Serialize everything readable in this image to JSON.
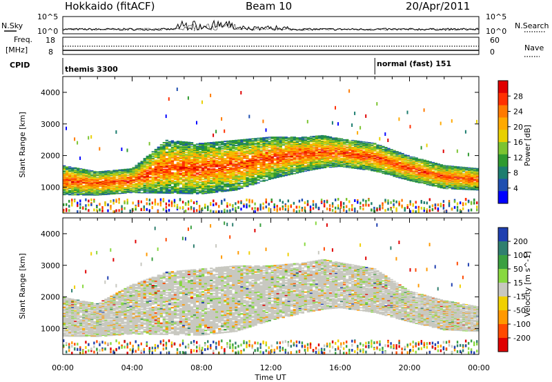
{
  "header": {
    "station": "Hokkaido (fitACF)",
    "beam": "Beam 10",
    "date": "20/Apr/2011"
  },
  "top_panels": {
    "nsky_label": "N.Sky",
    "nsky_ticks": [
      "10^5",
      "10^0"
    ],
    "nsearch_label": "N.Search",
    "nsearch_ticks": [
      "10^5",
      "10^0"
    ],
    "freq_label_1": "Freq.",
    "freq_label_2": "[MHz]",
    "freq_ticks": [
      "18",
      "8"
    ],
    "nave_label": "Nave",
    "nave_ticks": [
      "60",
      "0"
    ],
    "cpid_label": "CPID",
    "cpid_segments": [
      {
        "text": "themis 3300",
        "start_hour": 0
      },
      {
        "text": "normal (fast) 151",
        "start_hour": 18
      }
    ]
  },
  "chart_data": [
    {
      "type": "heatmap",
      "title": "",
      "xlabel": "Time UT",
      "ylabel": "Slant Range [km]",
      "quantity": "Power [dB]",
      "x_range_hours": [
        0,
        24
      ],
      "ylim": [
        180,
        4500
      ],
      "y_ticks": [
        1000,
        2000,
        3000,
        4000
      ],
      "colorbar_ticks": [
        "28",
        "24",
        "20",
        "16",
        "12",
        "8",
        "4"
      ],
      "colorbar_colors": [
        "#e00000",
        "#ff3000",
        "#ff7a00",
        "#ffaa00",
        "#e8d000",
        "#7cc430",
        "#2f9a2f",
        "#1c7d6f",
        "#1f4fb0",
        "#0000ff"
      ],
      "echo_bands": [
        {
          "hours": [
            0,
            2,
            4,
            6,
            8,
            10,
            12,
            14,
            15,
            16,
            18,
            20,
            22,
            24
          ],
          "low_km": [
            750,
            740,
            820,
            800,
            780,
            900,
            1250,
            1500,
            1600,
            1650,
            1500,
            1200,
            950,
            900
          ],
          "high_km": [
            1700,
            1500,
            1600,
            2500,
            2400,
            2500,
            2600,
            2600,
            2650,
            2550,
            2400,
            2000,
            1700,
            1600
          ]
        }
      ]
    },
    {
      "type": "heatmap",
      "title": "",
      "xlabel": "Time UT",
      "ylabel": "Slant Range [km]",
      "quantity": "Velocity [m s^-1]",
      "x_range_hours": [
        0,
        24
      ],
      "ylim": [
        180,
        4500
      ],
      "y_ticks": [
        1000,
        2000,
        3000,
        4000
      ],
      "colorbar_ticks": [
        "200",
        "100",
        "50",
        "15",
        "-15",
        "-50",
        "-100",
        "-200"
      ],
      "colorbar_colors": [
        "#1f3fb0",
        "#2f7f6f",
        "#3aa040",
        "#88d840",
        "#c8c8c0",
        "#f0d000",
        "#ff9900",
        "#ff4a00",
        "#e00000"
      ],
      "echo_bands": [
        {
          "hours": [
            0,
            2,
            4,
            6,
            8,
            10,
            12,
            14,
            15,
            16,
            18,
            20,
            22,
            24
          ],
          "low_km": [
            750,
            740,
            820,
            800,
            780,
            900,
            1250,
            1500,
            1600,
            1650,
            1500,
            1200,
            950,
            900
          ],
          "high_km": [
            2000,
            1800,
            2400,
            2800,
            2900,
            3000,
            3000,
            3100,
            3200,
            3100,
            2900,
            2200,
            1900,
            1700
          ]
        }
      ]
    }
  ],
  "time_ticks": [
    "00:00",
    "04:00",
    "08:00",
    "12:00",
    "16:00",
    "20:00",
    "00:00"
  ],
  "time_label": "Time UT"
}
